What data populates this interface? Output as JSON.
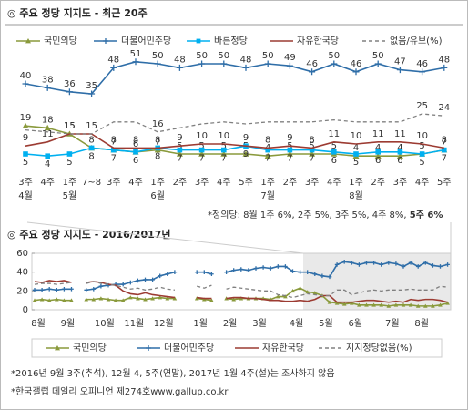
{
  "chart_data": [
    {
      "type": "line",
      "title": "◎  주요 정당 지지도 - 최근 20주",
      "categories": [
        [
          "3주",
          "4월"
        ],
        [
          "4주"
        ],
        [
          "1주",
          "5월"
        ],
        [
          "7~8"
        ],
        [
          "3주"
        ],
        [
          "4주"
        ],
        [
          "1주",
          "6월"
        ],
        [
          "2주"
        ],
        [
          "3주"
        ],
        [
          "4주"
        ],
        [
          "5주"
        ],
        [
          "1주",
          "7월"
        ],
        [
          "2주"
        ],
        [
          "3주"
        ],
        [
          "4주"
        ],
        [
          "1주",
          "8월"
        ],
        [
          "2주"
        ],
        [
          "3주"
        ],
        [
          "4주"
        ],
        [
          "5주"
        ]
      ],
      "series": [
        {
          "name": "국민의당",
          "color": "#8a9a3c",
          "marker": "triangle",
          "values": [
            19,
            18,
            15,
            8,
            7,
            6,
            7,
            5,
            5,
            5,
            5,
            4,
            5,
            5,
            5,
            4,
            4,
            4,
            5,
            7
          ]
        },
        {
          "name": "더불어민주당",
          "color": "#2f6ea8",
          "marker": "plus",
          "values": [
            40,
            38,
            36,
            35,
            48,
            51,
            50,
            48,
            50,
            50,
            48,
            50,
            49,
            46,
            50,
            46,
            50,
            47,
            46,
            48
          ]
        },
        {
          "name": "바른정당",
          "color": "#00b0f0",
          "marker": "square",
          "values": [
            5,
            4,
            5,
            8,
            7,
            6,
            8,
            7,
            7,
            7,
            9,
            7,
            7,
            7,
            6,
            5,
            6,
            6,
            5,
            7
          ]
        },
        {
          "name": "자유한국당",
          "color": "#9c3b32",
          "marker": "none",
          "values": [
            9,
            11,
            15,
            15,
            8,
            8,
            8,
            9,
            10,
            10,
            9,
            8,
            9,
            8,
            11,
            10,
            11,
            11,
            10,
            8
          ]
        },
        {
          "name": "없음/유보(%)",
          "color": "#808080",
          "marker": "none",
          "dash": true,
          "values": [
            17,
            16,
            15,
            15,
            21,
            21,
            16,
            18,
            20,
            21,
            20,
            21,
            21,
            21,
            22,
            21,
            21,
            21,
            25,
            24
          ],
          "value_labels": [
            null,
            null,
            null,
            null,
            null,
            null,
            "16",
            null,
            null,
            null,
            null,
            null,
            null,
            null,
            null,
            null,
            null,
            null,
            "25",
            "24"
          ]
        }
      ],
      "note": "*정의당: 8월 1주 6%, 2주 5%, 3주 5%, 4주 8%, ",
      "note_bold": "5주 6%"
    },
    {
      "type": "line",
      "title": "◎  주요 정당 지지도 - 2016/2017년",
      "categories": [
        "8월",
        null,
        null,
        null,
        "9월",
        null,
        null,
        null,
        null,
        "10월",
        null,
        null,
        null,
        "11월",
        null,
        null,
        null,
        "12월",
        null,
        null,
        null,
        null,
        "1월",
        null,
        null,
        null,
        "2월",
        null,
        null,
        null,
        "3월",
        null,
        null,
        null,
        null,
        "4월",
        null,
        null,
        null,
        "5월",
        null,
        null,
        null,
        "6월",
        null,
        null,
        null,
        null,
        "7월",
        null,
        null,
        null,
        "8월",
        null,
        null,
        null,
        null
      ],
      "ylim": [
        0,
        60
      ],
      "yticks": [
        0,
        20,
        40,
        60
      ],
      "series": [
        {
          "name": "국민의당",
          "color": "#8a9a3c",
          "marker": "triangle",
          "values": [
            10,
            11,
            10,
            11,
            10,
            10,
            null,
            11,
            11,
            12,
            11,
            10,
            10,
            13,
            12,
            11,
            12,
            13,
            12,
            12,
            null,
            null,
            12,
            11,
            10,
            null,
            12,
            11,
            12,
            12,
            12,
            12,
            11,
            14,
            14,
            20,
            23,
            19,
            18,
            15,
            8,
            7,
            6,
            7,
            5,
            5,
            5,
            5,
            4,
            5,
            5,
            5,
            4,
            4,
            4,
            5,
            7
          ]
        },
        {
          "name": "더불어민주당",
          "color": "#2f6ea8",
          "marker": "plus",
          "values": [
            21,
            21,
            22,
            21,
            22,
            22,
            null,
            21,
            22,
            25,
            26,
            27,
            27,
            29,
            31,
            32,
            32,
            36,
            38,
            40,
            null,
            null,
            40,
            40,
            38,
            null,
            40,
            42,
            43,
            42,
            44,
            45,
            44,
            46,
            46,
            41,
            40,
            40,
            38,
            36,
            35,
            48,
            51,
            50,
            48,
            50,
            50,
            48,
            50,
            49,
            46,
            50,
            46,
            50,
            47,
            46,
            48
          ]
        },
        {
          "name": "자유한국당",
          "color": "#9c3b32",
          "marker": "none",
          "values": [
            30,
            29,
            31,
            30,
            31,
            29,
            null,
            29,
            30,
            29,
            27,
            26,
            20,
            17,
            16,
            18,
            16,
            15,
            14,
            13,
            null,
            null,
            13,
            12,
            12,
            null,
            12,
            13,
            13,
            12,
            12,
            11,
            10,
            10,
            9,
            9,
            10,
            9,
            11,
            15,
            15,
            8,
            8,
            8,
            9,
            10,
            10,
            9,
            8,
            9,
            8,
            11,
            10,
            11,
            11,
            10,
            8
          ]
        },
        {
          "name": "지지정당없음(%)",
          "color": "#808080",
          "marker": "none",
          "dash": true,
          "values": [
            27,
            28,
            28,
            27,
            28,
            29,
            null,
            28,
            30,
            28,
            27,
            26,
            24,
            22,
            23,
            21,
            22,
            24,
            22,
            21,
            null,
            null,
            25,
            23,
            26,
            null,
            22,
            24,
            23,
            22,
            21,
            20,
            20,
            16,
            15,
            13,
            15,
            17,
            16,
            15,
            15,
            21,
            21,
            16,
            18,
            20,
            21,
            20,
            21,
            21,
            21,
            22,
            21,
            21,
            21,
            25,
            24
          ]
        }
      ]
    }
  ],
  "footnotes": [
    "*2016년 9월 3주(추석), 12월 4, 5주(연말), 2017년 1월 4주(설)는 조사하지 않음",
    "*한국갤럽 데일리 오피니언 제274호www.gallup.co.kr"
  ]
}
